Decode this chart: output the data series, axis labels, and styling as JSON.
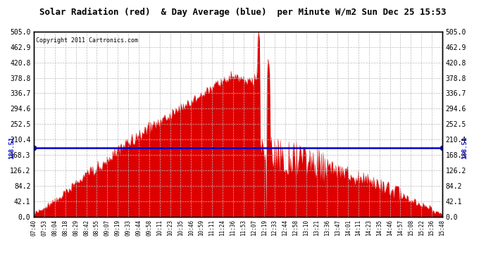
{
  "title": "Solar Radiation (red)  & Day Average (blue)  per Minute W/m2 Sun Dec 25 15:53",
  "copyright": "Copyright 2011 Cartronics.com",
  "avg_value": 188.51,
  "y_max": 505.0,
  "y_min": 0.0,
  "yticks": [
    0.0,
    42.1,
    84.2,
    126.2,
    168.3,
    210.4,
    252.5,
    294.6,
    336.7,
    378.8,
    420.8,
    462.9,
    505.0
  ],
  "ytick_labels": [
    "0.0",
    "42.1",
    "84.2",
    "126.2",
    "168.3",
    "210.4",
    "252.5",
    "294.6",
    "336.7",
    "378.8",
    "420.8",
    "462.9",
    "505.0"
  ],
  "background_color": "#ffffff",
  "fill_color": "#dd0000",
  "avg_line_color": "#0000cc",
  "grid_color": "#bbbbbb",
  "title_color": "#000000",
  "x_tick_labels": [
    "07:40",
    "07:53",
    "08:04",
    "08:18",
    "08:29",
    "08:42",
    "08:55",
    "09:07",
    "09:19",
    "09:33",
    "09:44",
    "09:58",
    "10:11",
    "10:23",
    "10:35",
    "10:46",
    "10:59",
    "11:11",
    "11:24",
    "11:36",
    "11:53",
    "12:07",
    "12:19",
    "12:33",
    "12:44",
    "12:58",
    "13:10",
    "13:21",
    "13:36",
    "13:47",
    "14:01",
    "14:11",
    "14:23",
    "14:35",
    "14:46",
    "14:57",
    "15:08",
    "15:22",
    "15:36",
    "15:48"
  ]
}
